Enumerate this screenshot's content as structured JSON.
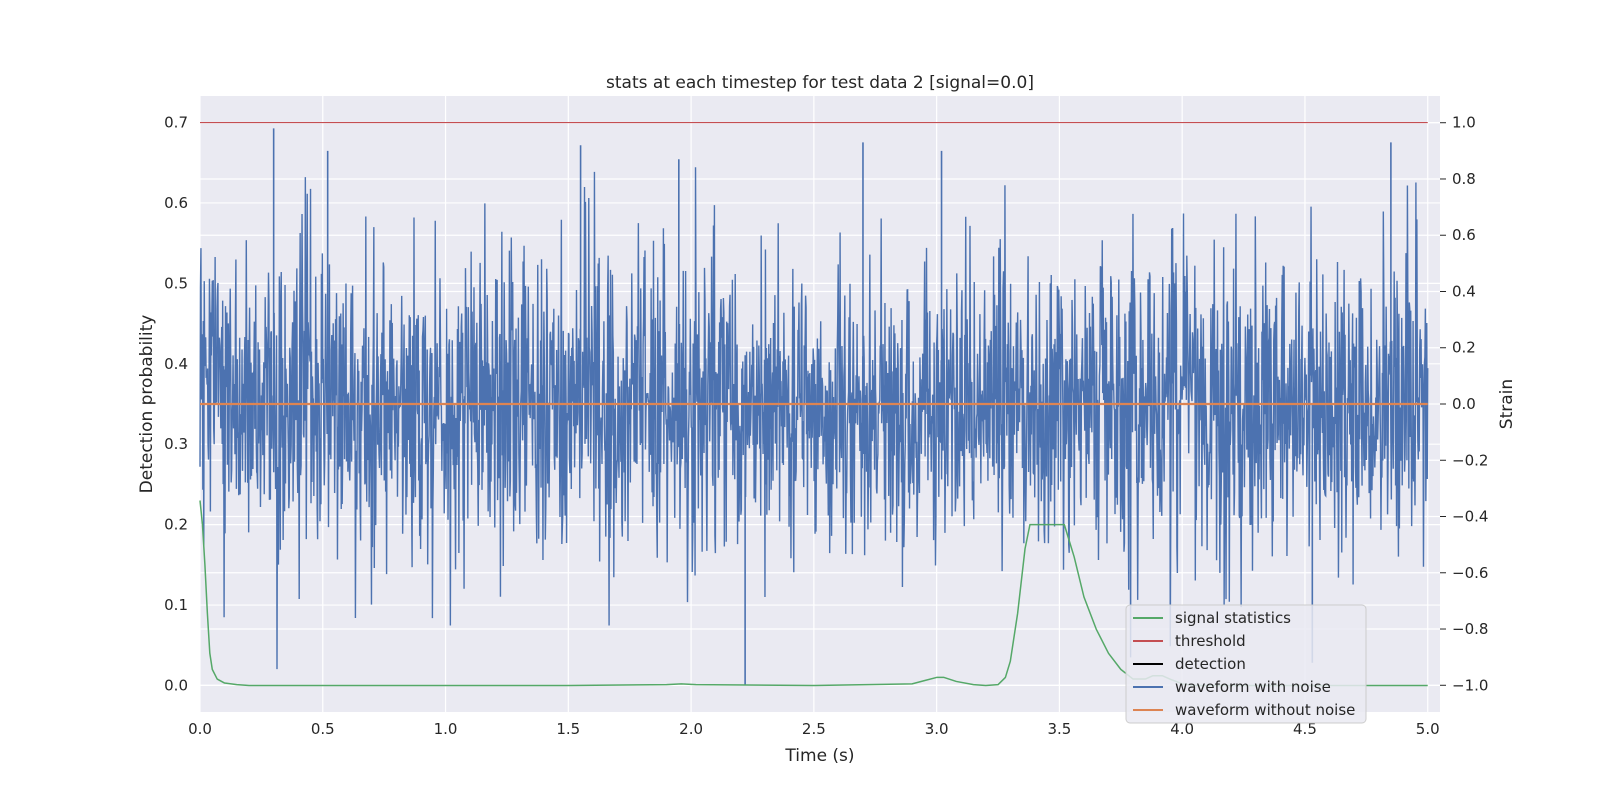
{
  "chart_data": {
    "type": "line",
    "title": "stats at each timestep for test data 2 [signal=0.0]",
    "xlabel": "Time (s)",
    "ylabel_left": "Detection probability",
    "ylabel_right": "Strain",
    "xlim": [
      0.0,
      5.05
    ],
    "ylim_left": [
      -0.033,
      0.733
    ],
    "ylim_right": [
      -1.095,
      1.095
    ],
    "x_ticks": [
      "0.0",
      "0.5",
      "1.0",
      "1.5",
      "2.0",
      "2.5",
      "3.0",
      "3.5",
      "4.0",
      "4.5",
      "5.0"
    ],
    "y_ticks_left": [
      "0.0",
      "0.1",
      "0.2",
      "0.3",
      "0.4",
      "0.5",
      "0.6",
      "0.7"
    ],
    "y_ticks_right": [
      "−1.0",
      "−0.8",
      "−0.6",
      "−0.4",
      "−0.2",
      "0.0",
      "0.2",
      "0.4",
      "0.6",
      "0.8",
      "1.0"
    ],
    "grid": true,
    "legend_position": "lower right",
    "colors": {
      "signal_statistics": "#55a868",
      "threshold": "#c44e52",
      "detection": "#000000",
      "waveform_with_noise": "#4c72b0",
      "waveform_without_noise": "#dd8452",
      "background": "#eaeaf2"
    },
    "series": [
      {
        "name": "signal statistics",
        "axis": "left",
        "x": [
          0.0,
          0.01,
          0.02,
          0.03,
          0.04,
          0.05,
          0.07,
          0.1,
          0.15,
          0.2,
          0.5,
          1.0,
          1.5,
          1.9,
          1.96,
          2.02,
          2.5,
          2.9,
          2.95,
          3.0,
          3.03,
          3.08,
          3.15,
          3.2,
          3.25,
          3.28,
          3.3,
          3.33,
          3.36,
          3.38,
          3.4,
          3.42,
          3.45,
          3.48,
          3.52,
          3.56,
          3.6,
          3.65,
          3.7,
          3.75,
          3.8,
          3.85,
          3.88,
          3.92,
          3.95,
          4.0,
          4.05,
          4.1,
          4.5,
          5.0
        ],
        "values": [
          0.23,
          0.2,
          0.15,
          0.09,
          0.04,
          0.02,
          0.008,
          0.003,
          0.001,
          0.0,
          0.0,
          0.0,
          0.0,
          0.001,
          0.002,
          0.001,
          0.0,
          0.002,
          0.006,
          0.01,
          0.01,
          0.005,
          0.001,
          0.0,
          0.001,
          0.01,
          0.03,
          0.09,
          0.17,
          0.2,
          0.2,
          0.2,
          0.2,
          0.2,
          0.2,
          0.16,
          0.11,
          0.07,
          0.04,
          0.02,
          0.008,
          0.008,
          0.012,
          0.012,
          0.008,
          0.002,
          0.0,
          0.0,
          0.0,
          0.0
        ]
      },
      {
        "name": "threshold",
        "axis": "left",
        "x": [
          0.0,
          5.0
        ],
        "values": [
          0.7,
          0.7
        ]
      },
      {
        "name": "detection",
        "axis": "left",
        "x": [],
        "values": []
      },
      {
        "name": "waveform with noise",
        "axis": "right",
        "x_range": [
          0.0,
          5.0
        ],
        "approx_min": -1.0,
        "approx_max": 0.98,
        "extremes": [
          {
            "x": 0.3,
            "value": 0.98
          },
          {
            "x": 0.52,
            "value": 0.9
          },
          {
            "x": 1.55,
            "value": 0.92
          },
          {
            "x": 1.95,
            "value": 0.87
          },
          {
            "x": 2.22,
            "value": -1.0
          },
          {
            "x": 2.7,
            "value": 0.93
          },
          {
            "x": 3.02,
            "value": 0.9
          },
          {
            "x": 4.53,
            "value": -0.92
          },
          {
            "x": 4.85,
            "value": 0.93
          }
        ]
      },
      {
        "name": "waveform without noise",
        "axis": "right",
        "x": [
          0.0,
          5.0
        ],
        "values": [
          0.0,
          0.0
        ]
      }
    ],
    "legend": [
      "signal statistics",
      "threshold",
      "detection",
      "waveform with noise",
      "waveform without noise"
    ]
  }
}
